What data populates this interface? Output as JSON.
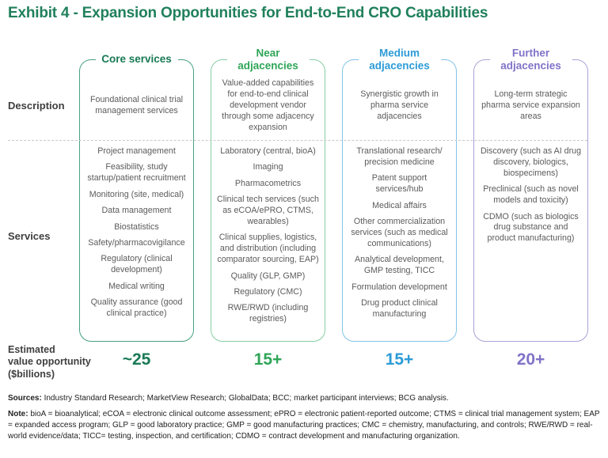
{
  "title": "Exhibit 4 - Expansion Opportunities for End-to-End CRO Capabilities",
  "colors": {
    "brand_green": "#20805C",
    "divider_gray": "#c9c9c9",
    "body_text_gray": "#5b5b5b",
    "label_dark": "#3f3f3f"
  },
  "row_labels": {
    "description": "Description",
    "services": "Services",
    "value_lines": [
      "Estimated",
      "value opportunity",
      "($billions)"
    ]
  },
  "columns": [
    {
      "header": "Core services",
      "accent": "#197A56",
      "border": "#47A17E",
      "description": "Foundational clinical trial management services",
      "services": [
        "Project management",
        "Feasibility, study startup/patient recruitment",
        "Monitoring (site, medical)",
        "Data management",
        "Biostatistics",
        "Safety/pharmacovigilance",
        "Regulatory (clinical development)",
        "Medical writing",
        "Quality assurance (good clinical practice)"
      ],
      "value": "~25"
    },
    {
      "header": "Near adjacencies",
      "accent": "#2FA558",
      "border": "#86CDA4",
      "description": "Value-added capabilities for end-to-end clinical development vendor through some adjacency expansion",
      "services": [
        "Laboratory (central, bioA)",
        "Imaging",
        "Pharmacometrics",
        "Clinical tech services (such as eCOA/ePRO, CTMS, wearables)",
        "Clinical supplies, logistics, and distribution (including comparator sourcing, EAP)",
        "Quality (GLP, GMP)",
        "Regulatory (CMC)",
        "RWE/RWD (including registries)"
      ],
      "value": "15+"
    },
    {
      "header": "Medium adjacencies",
      "accent": "#2D9BD6",
      "border": "#82C4E9",
      "description": "Synergistic growth in pharma service adjacencies",
      "services": [
        "Translational research/ precision medicine",
        "Patent support services/hub",
        "Medical affairs",
        "Other commercialization services (such as medical communications)",
        "Analytical development, GMP testing, TICC",
        "Formulation development",
        "Drug product clinical manufacturing"
      ],
      "value": "15+"
    },
    {
      "header": "Further adjacencies",
      "accent": "#8173C8",
      "border": "#ABA2D8",
      "description": "Long-term strategic pharma service expansion areas",
      "services": [
        "Discovery (such as AI drug discovery, biologics, biospecimens)",
        "Preclinical (such as novel models and toxicity)",
        "CDMO (such as biologics drug substance and product manufacturing)"
      ],
      "value": "20+"
    }
  ],
  "footer": {
    "sources_label": "Sources:",
    "sources_text": " Industry Standard Research; MarketView Research; GlobalData; BCC; market participant interviews; BCG analysis.",
    "note_label": "Note:",
    "note_text": " bioA = bioanalytical; eCOA = electronic clinical outcome assessment; ePRO = electronic patient-reported outcome; CTMS = clinical trial management system; EAP = expanded access program; GLP = good laboratory practice; GMP = good manufacturing practices; CMC = chemistry, manufacturing, and controls; RWE/RWD = real-world evidence/data; TICC= testing, inspection, and certification; CDMO = contract development and manufacturing organization."
  }
}
